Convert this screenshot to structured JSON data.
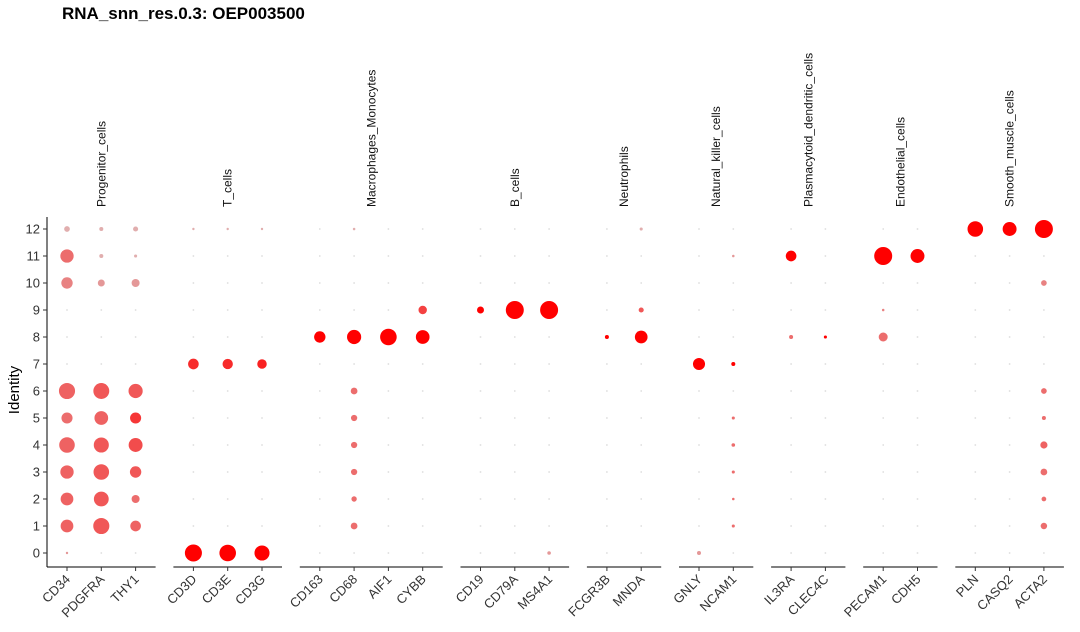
{
  "chart_data": {
    "type": "dotplot",
    "title": "RNA_snn_res.0.3: OEP003500",
    "ylabel": "Identity",
    "xlabel": "",
    "identities": [
      "0",
      "1",
      "2",
      "3",
      "4",
      "5",
      "6",
      "7",
      "8",
      "9",
      "10",
      "11",
      "12"
    ],
    "groups": [
      {
        "name": "Progenitor_cells",
        "genes": [
          "CD34",
          "PDGFRA",
          "THY1"
        ]
      },
      {
        "name": "T_cells",
        "genes": [
          "CD3D",
          "CD3E",
          "CD3G"
        ]
      },
      {
        "name": "Macrophages_Monocytes",
        "genes": [
          "CD163",
          "CD68",
          "AIF1",
          "CYBB"
        ]
      },
      {
        "name": "B_cells",
        "genes": [
          "CD19",
          "CD79A",
          "MS4A1"
        ]
      },
      {
        "name": "Neutrophils",
        "genes": [
          "FCGR3B",
          "MNDA"
        ]
      },
      {
        "name": "Natural_killer_cells",
        "genes": [
          "GNLY",
          "NCAM1"
        ]
      },
      {
        "name": "Plasmacytoid_dendritic_cells",
        "genes": [
          "IL3RA",
          "CLEC4C"
        ]
      },
      {
        "name": "Endothelial_cells",
        "genes": [
          "PECAM1",
          "CDH5"
        ]
      },
      {
        "name": "Smooth_muscle_cells",
        "genes": [
          "PLN",
          "CASQ2",
          "ACTA2"
        ]
      }
    ],
    "pct_expressed_note": "values are 0-1 fractions (dot size); avg_expression 0-1 (dot color)",
    "points": {
      "CD34": [
        [
          0,
          0.01,
          0.3
        ],
        [
          1,
          0.5,
          0.55
        ],
        [
          2,
          0.5,
          0.55
        ],
        [
          3,
          0.55,
          0.55
        ],
        [
          4,
          0.75,
          0.55
        ],
        [
          5,
          0.38,
          0.5
        ],
        [
          6,
          0.8,
          0.55
        ],
        [
          10,
          0.4,
          0.4
        ],
        [
          11,
          0.55,
          0.5
        ],
        [
          12,
          0.1,
          0.2
        ]
      ],
      "PDGFRA": [
        [
          1,
          0.8,
          0.6
        ],
        [
          2,
          0.68,
          0.6
        ],
        [
          3,
          0.75,
          0.6
        ],
        [
          4,
          0.7,
          0.6
        ],
        [
          5,
          0.58,
          0.55
        ],
        [
          6,
          0.78,
          0.6
        ],
        [
          10,
          0.15,
          0.3
        ],
        [
          11,
          0.05,
          0.2
        ],
        [
          12,
          0.05,
          0.2
        ]
      ],
      "THY1": [
        [
          1,
          0.35,
          0.55
        ],
        [
          2,
          0.2,
          0.5
        ],
        [
          3,
          0.4,
          0.6
        ],
        [
          4,
          0.6,
          0.65
        ],
        [
          5,
          0.38,
          0.75
        ],
        [
          6,
          0.62,
          0.6
        ],
        [
          10,
          0.2,
          0.3
        ],
        [
          11,
          0.03,
          0.2
        ],
        [
          12,
          0.08,
          0.2
        ]
      ],
      "CD3D": [
        [
          0,
          0.9,
          1.0
        ],
        [
          7,
          0.35,
          0.8
        ],
        [
          12,
          0.01,
          0.2
        ]
      ],
      "CD3E": [
        [
          0,
          0.85,
          1.0
        ],
        [
          7,
          0.33,
          0.8
        ],
        [
          12,
          0.01,
          0.2
        ]
      ],
      "CD3G": [
        [
          0,
          0.7,
          1.0
        ],
        [
          7,
          0.28,
          0.85
        ],
        [
          12,
          0.01,
          0.2
        ]
      ],
      "CD163": [
        [
          8,
          0.4,
          1.0
        ]
      ],
      "CD68": [
        [
          1,
          0.14,
          0.5
        ],
        [
          2,
          0.09,
          0.5
        ],
        [
          3,
          0.12,
          0.5
        ],
        [
          4,
          0.12,
          0.5
        ],
        [
          5,
          0.12,
          0.5
        ],
        [
          6,
          0.14,
          0.5
        ],
        [
          8,
          0.62,
          1.0
        ],
        [
          12,
          0.02,
          0.2
        ]
      ],
      "AIF1": [
        [
          8,
          0.85,
          1.0
        ]
      ],
      "CYBB": [
        [
          8,
          0.58,
          1.0
        ],
        [
          9,
          0.22,
          0.7
        ]
      ],
      "CD19": [
        [
          9,
          0.15,
          1.0
        ]
      ],
      "CD79A": [
        [
          9,
          1.0,
          1.0
        ]
      ],
      "MS4A1": [
        [
          9,
          1.0,
          1.0
        ],
        [
          0,
          0.04,
          0.3
        ]
      ],
      "FCGR3B": [
        [
          8,
          0.05,
          1.0
        ]
      ],
      "MNDA": [
        [
          8,
          0.5,
          1.0
        ],
        [
          9,
          0.08,
          0.6
        ],
        [
          12,
          0.03,
          0.2
        ]
      ],
      "GNLY": [
        [
          7,
          0.45,
          1.0
        ],
        [
          0,
          0.05,
          0.3
        ]
      ],
      "NCAM1": [
        [
          7,
          0.05,
          1.0
        ],
        [
          1,
          0.03,
          0.5
        ],
        [
          2,
          0.02,
          0.5
        ],
        [
          3,
          0.03,
          0.5
        ],
        [
          4,
          0.04,
          0.5
        ],
        [
          5,
          0.03,
          0.5
        ],
        [
          11,
          0.02,
          0.3
        ]
      ],
      "IL3RA": [
        [
          11,
          0.35,
          1.0
        ],
        [
          8,
          0.05,
          0.5
        ]
      ],
      "CLEC4C": [
        [
          8,
          0.03,
          1.0
        ]
      ],
      "PECAM1": [
        [
          11,
          1.0,
          1.0
        ],
        [
          8,
          0.25,
          0.5
        ],
        [
          9,
          0.02,
          0.4
        ]
      ],
      "CDH5": [
        [
          11,
          0.6,
          1.0
        ]
      ],
      "PLN": [
        [
          12,
          0.75,
          1.0
        ]
      ],
      "CASQ2": [
        [
          12,
          0.6,
          1.0
        ]
      ],
      "ACTA2": [
        [
          1,
          0.13,
          0.5
        ],
        [
          2,
          0.07,
          0.5
        ],
        [
          3,
          0.14,
          0.5
        ],
        [
          4,
          0.16,
          0.55
        ],
        [
          5,
          0.05,
          0.5
        ],
        [
          6,
          0.1,
          0.5
        ],
        [
          10,
          0.1,
          0.4
        ],
        [
          12,
          1.0,
          1.0
        ]
      ]
    },
    "colors": {
      "low": "#d9d9d9",
      "high": "#ff0000"
    },
    "legend": "none"
  }
}
